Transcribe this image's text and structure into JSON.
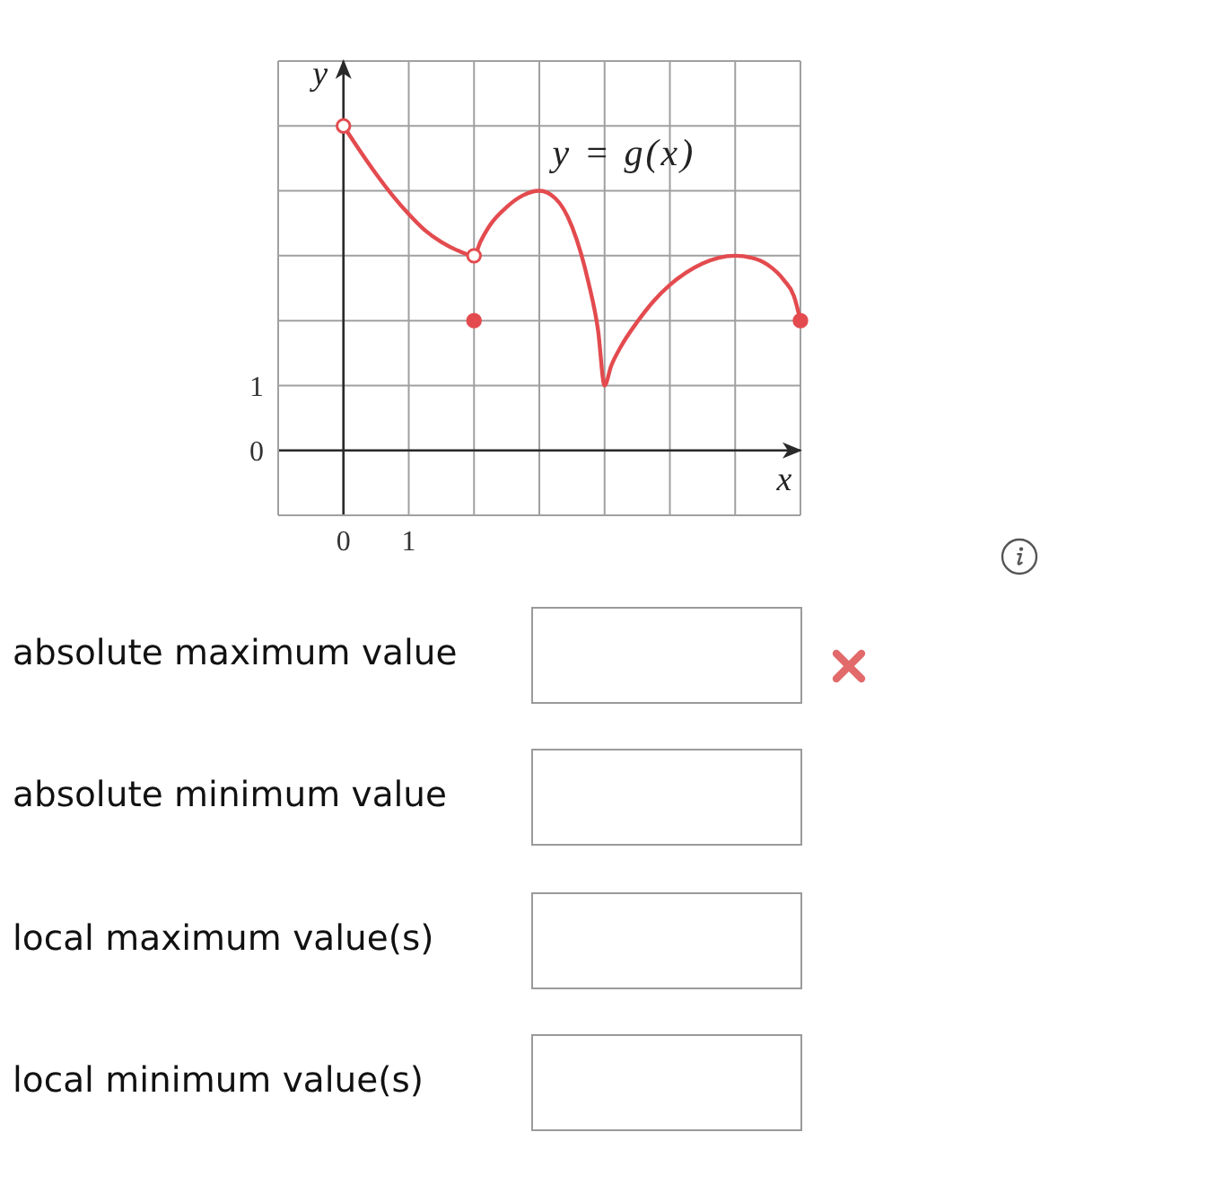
{
  "chart_data": {
    "type": "line",
    "xlabel": "x",
    "ylabel": "y",
    "xlim": [
      -1,
      7
    ],
    "ylim": [
      -1,
      6
    ],
    "xticks": [
      {
        "value": -1,
        "label": null
      },
      0,
      1,
      {
        "value": 2,
        "label": null
      },
      {
        "value": 3,
        "label": null
      },
      {
        "value": 4,
        "label": null
      },
      {
        "value": 5,
        "label": null
      },
      {
        "value": 6,
        "label": null
      },
      {
        "value": 7,
        "label": null
      }
    ],
    "yticks": [
      {
        "value": -1,
        "label": null
      },
      0,
      1,
      {
        "value": 2,
        "label": null
      },
      {
        "value": 3,
        "label": null
      },
      {
        "value": 4,
        "label": null
      },
      {
        "value": 5,
        "label": null
      },
      {
        "value": 6,
        "label": null
      }
    ],
    "grid": true,
    "series": [
      {
        "name": "y = g(x)",
        "color": "#e34b4f",
        "marker": "none",
        "line_style": "solid",
        "x": [
          0,
          0.25,
          0.5,
          0.75,
          1,
          1.25,
          1.5,
          1.75,
          2,
          2.1,
          2.25,
          2.5,
          2.75,
          3,
          3.25,
          3.5,
          3.75,
          3.9,
          4,
          4.1,
          4.25,
          4.5,
          4.75,
          5,
          5.25,
          5.5,
          5.75,
          6,
          6.25,
          6.5,
          6.75,
          6.9,
          7
        ],
        "values": [
          5,
          4.62,
          4.26,
          3.93,
          3.64,
          3.39,
          3.21,
          3.08,
          3,
          3.22,
          3.48,
          3.75,
          3.93,
          4,
          3.88,
          3.45,
          2.6,
          1.85,
          1,
          1.3,
          1.6,
          1.98,
          2.3,
          2.55,
          2.74,
          2.88,
          2.97,
          3,
          2.97,
          2.86,
          2.62,
          2.38,
          2
        ]
      },
      {
        "type": "scatter",
        "color": "#ffffff",
        "marker": "circle",
        "x": [
          0,
          2
        ],
        "values": [
          5,
          3
        ]
      },
      {
        "type": "scatter",
        "color": "#e34b4f",
        "marker": "circle",
        "x": [
          2,
          7
        ],
        "values": [
          2,
          2
        ]
      }
    ],
    "annotations": [
      "absolute maximum value",
      "absolute minimum value",
      "local maximum value(s)",
      "local minimum value(s)"
    ]
  }
}
